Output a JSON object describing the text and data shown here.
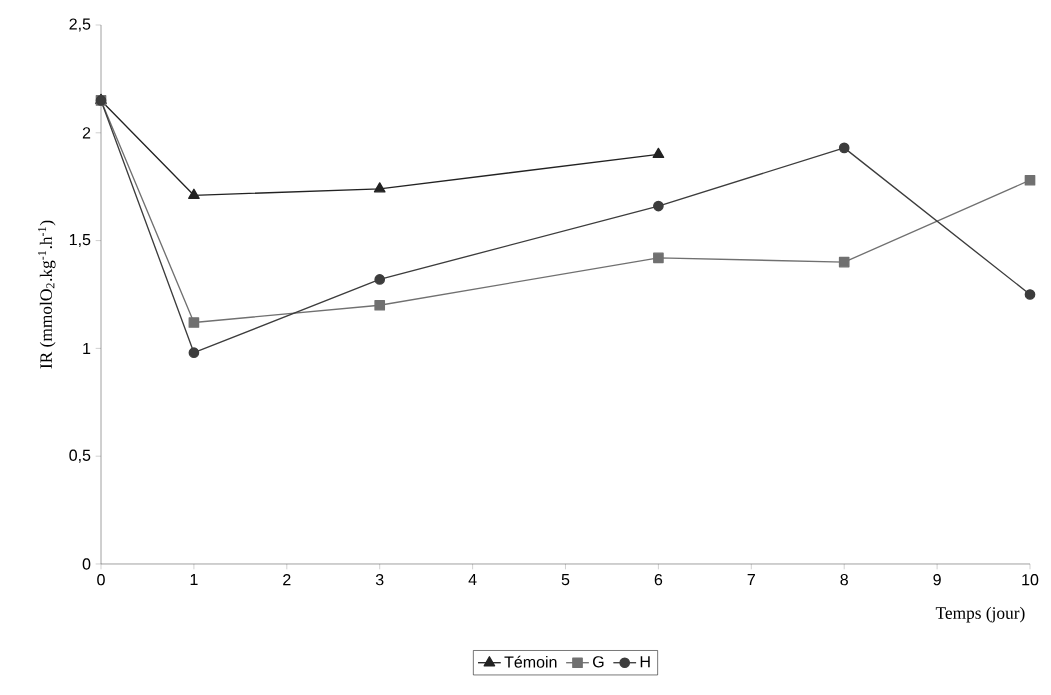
{
  "chart_data": {
    "type": "line",
    "xlabel": "Temps (jour)",
    "ylabel": "IR (mmolO$_{2}$.kg$^{-1}$.h$^{-1}$)",
    "x": [
      0,
      1,
      3,
      6,
      8,
      10
    ],
    "series": [
      {
        "name": "Témoin",
        "color": "#222222",
        "marker": "triangle",
        "values": [
          2.15,
          1.71,
          1.74,
          1.9,
          null,
          null
        ]
      },
      {
        "name": "G",
        "color": "#707070",
        "marker": "square",
        "values": [
          2.15,
          1.12,
          1.2,
          1.42,
          1.4,
          1.78
        ]
      },
      {
        "name": "H",
        "color": "#3c3c3c",
        "marker": "circle",
        "values": [
          2.15,
          0.98,
          1.32,
          1.66,
          1.93,
          1.25
        ]
      }
    ],
    "xlim": [
      0,
      10
    ],
    "xticks": [
      0,
      1,
      2,
      3,
      4,
      5,
      6,
      7,
      8,
      9,
      10
    ],
    "ylim": [
      0,
      2.5
    ],
    "yticks": [
      0,
      {
        "value": 0.5,
        "label": "0,5"
      },
      1,
      {
        "value": 1.5,
        "label": "1,5"
      },
      2,
      {
        "value": 2.5,
        "label": "2,5"
      }
    ],
    "grid": false,
    "legend": "bottom",
    "line_style": "solid"
  }
}
